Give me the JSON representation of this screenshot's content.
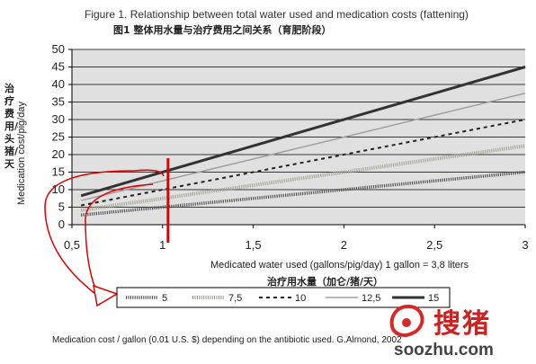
{
  "chart_data": {
    "type": "line",
    "title": "Figure 1. Relationship between total water used and medication costs (fattening)",
    "subtitle_cn": "图1 整体用水量与治疗费用之间关系（育肥阶段）",
    "ylabel": "Medication cost/pig/day",
    "ylabel_cn": "治疗费用/头猪/天",
    "xlabel": "Medicated water used (gallons/pig/day)  1 gallon = 3,8 liters",
    "xlabel_cn": "治疗用水量（加仑/猪/天）",
    "note": "Medication cost / gallon (0.01 U.S. $) depending on the antibiotic used. G.Almond, 2002",
    "xlim": [
      0.5,
      3
    ],
    "ylim": [
      0,
      50
    ],
    "x_ticks": [
      0.5,
      1,
      1.5,
      2,
      2.5,
      3
    ],
    "x_tick_labels": [
      "0,5",
      "1",
      "1,5",
      "2",
      "2,5",
      "3"
    ],
    "y_ticks": [
      0,
      5,
      10,
      15,
      20,
      25,
      30,
      35,
      40,
      45,
      50
    ],
    "y_tick_labels": [
      "0",
      "5",
      "10",
      "15",
      "20",
      "25",
      "30",
      "35",
      "40",
      "45",
      "50"
    ],
    "grid": true,
    "legend_position": "bottom",
    "marker_line": {
      "x": 1.03,
      "color": "#e00000"
    },
    "series": [
      {
        "name": "5",
        "label": "5",
        "slope": 5,
        "style": "dotted-thick",
        "color": "#555555",
        "width": 3.5
      },
      {
        "name": "7,5",
        "label": "7,5",
        "slope": 7.5,
        "style": "dotted-thick",
        "color": "#a8a89a",
        "width": 4
      },
      {
        "name": "10",
        "label": "10",
        "slope": 10,
        "style": "dashed",
        "color": "#222222",
        "width": 2
      },
      {
        "name": "12,5",
        "label": "12,5",
        "slope": 12.5,
        "style": "solid",
        "color": "#a0a0a0",
        "width": 1.5
      },
      {
        "name": "15",
        "label": "15",
        "slope": 15,
        "style": "solid",
        "color": "#333333",
        "width": 3
      }
    ]
  },
  "colors": {
    "plot_background": "#e0e0e0",
    "annotation": "#e00000"
  },
  "watermark": {
    "cn": "搜猪",
    "url": "soozhu.com"
  }
}
